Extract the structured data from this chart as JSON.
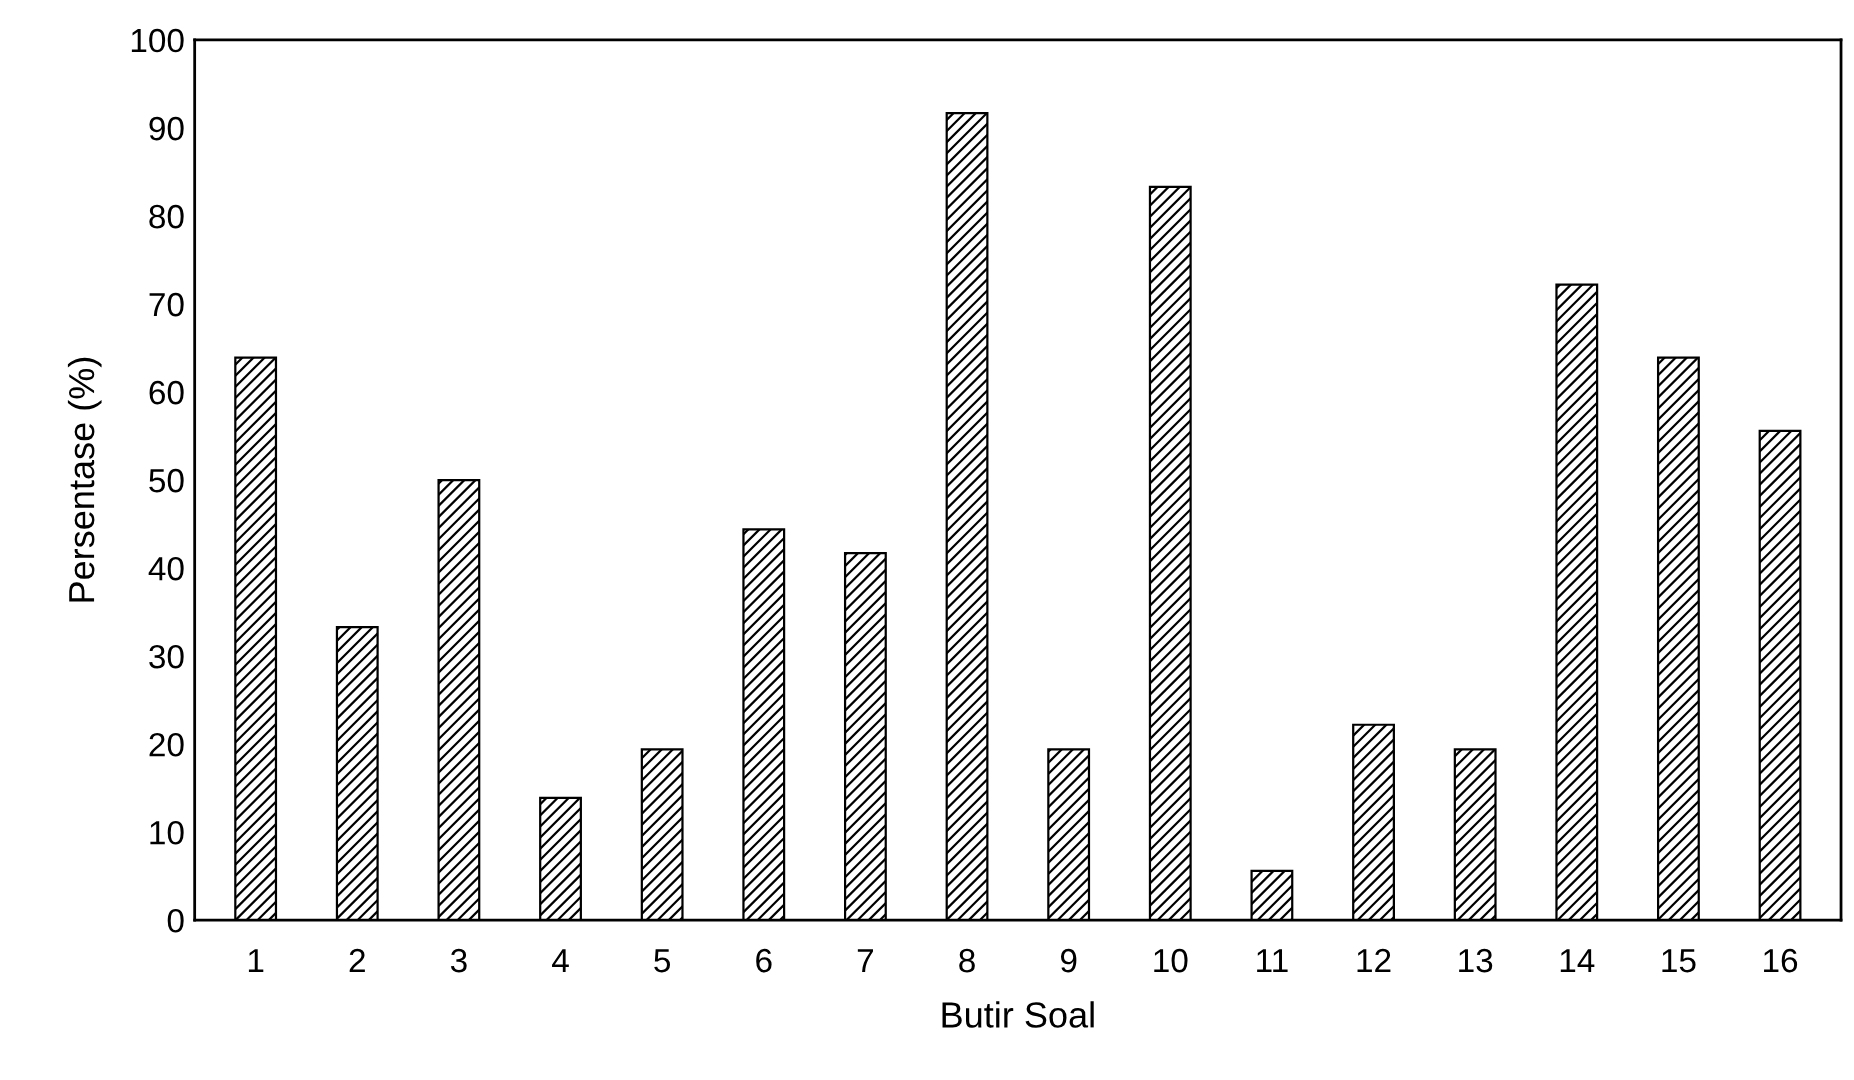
{
  "chart_data": {
    "type": "bar",
    "xlabel": "Butir Soal",
    "ylabel": "Persentase (%)",
    "categories": [
      "1",
      "2",
      "3",
      "4",
      "5",
      "6",
      "7",
      "8",
      "9",
      "10",
      "11",
      "12",
      "13",
      "14",
      "15",
      "16"
    ],
    "values": [
      63.9,
      33.3,
      50.0,
      13.9,
      19.4,
      44.4,
      41.7,
      91.7,
      19.4,
      83.3,
      5.6,
      22.2,
      19.4,
      72.2,
      63.9,
      55.6
    ],
    "color": "#000000",
    "ylim": [
      0,
      100
    ],
    "yticks": [
      0,
      10,
      20,
      30,
      40,
      50,
      60,
      70,
      80,
      90,
      100
    ],
    "grid": false,
    "legend": false
  }
}
